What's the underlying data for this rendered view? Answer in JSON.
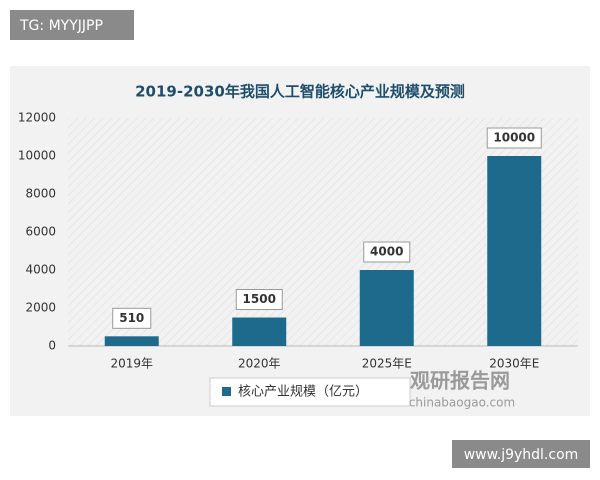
{
  "header_tag": "TG: MYYJJPP",
  "footer_url": "www.j9yhdl.com",
  "watermark": {
    "name": "观研报告网",
    "url": "chinabaogao.com"
  },
  "chart_data": {
    "type": "bar",
    "title": "2019-2030年我国人工智能核心产业规模及预测",
    "categories": [
      "2019年",
      "2020年",
      "2025年E",
      "2030年E"
    ],
    "series": [
      {
        "name": "核心产业规模（亿元）",
        "color": "#1d6a8d",
        "values": [
          510,
          1500,
          4000,
          10000
        ]
      }
    ],
    "ylim": [
      0,
      12000
    ],
    "yticks": [
      0,
      2000,
      4000,
      6000,
      8000,
      10000,
      12000
    ],
    "grid": false
  }
}
